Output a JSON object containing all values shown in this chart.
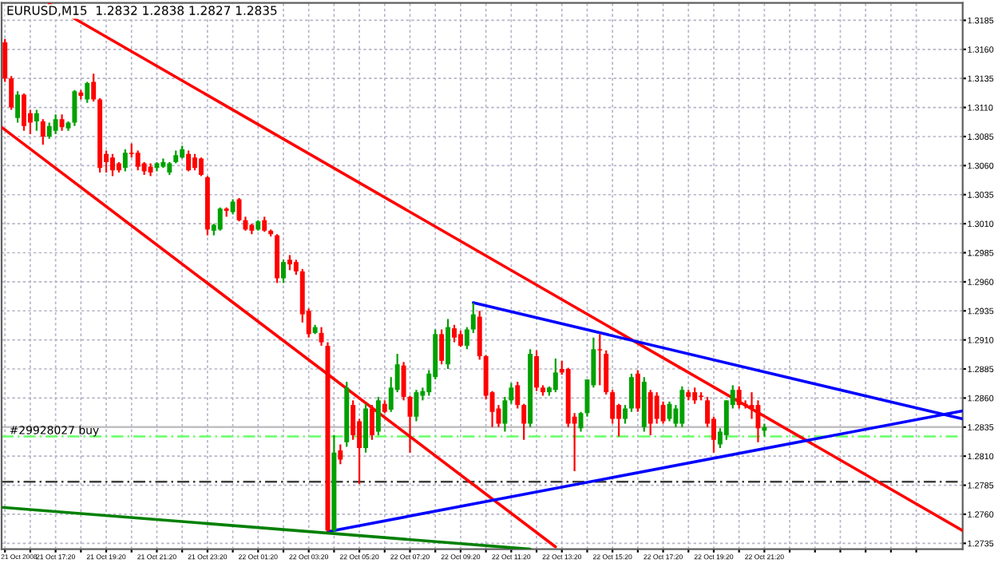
{
  "chart_data": {
    "type": "candlestick",
    "title": "EURUSD,M15  1.2832 1.2838 1.2827 1.2835",
    "x": [
      "2008-10-21T15:20",
      "2008-10-21T15:35",
      "2008-10-21T15:50",
      "2008-10-21T16:05",
      "2008-10-21T16:20",
      "2008-10-21T16:35",
      "2008-10-21T16:50",
      "2008-10-21T17:05",
      "2008-10-21T17:20",
      "2008-10-21T17:35",
      "2008-10-21T17:50",
      "2008-10-21T18:05",
      "2008-10-21T18:20",
      "2008-10-21T18:35",
      "2008-10-21T18:50",
      "2008-10-21T19:05",
      "2008-10-21T19:20",
      "2008-10-21T19:35",
      "2008-10-21T19:50",
      "2008-10-21T20:05",
      "2008-10-21T20:20",
      "2008-10-21T20:35",
      "2008-10-21T20:50",
      "2008-10-21T21:05",
      "2008-10-21T21:20",
      "2008-10-21T21:35",
      "2008-10-21T21:50",
      "2008-10-21T22:05",
      "2008-10-21T22:20",
      "2008-10-21T22:35",
      "2008-10-21T22:50",
      "2008-10-21T23:05",
      "2008-10-21T23:20",
      "2008-10-21T23:35",
      "2008-10-21T23:50",
      "2008-10-22T00:05",
      "2008-10-22T00:20",
      "2008-10-22T00:35",
      "2008-10-22T00:50",
      "2008-10-22T01:05",
      "2008-10-22T01:20",
      "2008-10-22T01:35",
      "2008-10-22T01:50",
      "2008-10-22T02:05",
      "2008-10-22T02:20",
      "2008-10-22T02:35",
      "2008-10-22T02:50",
      "2008-10-22T03:05",
      "2008-10-22T03:20",
      "2008-10-22T03:35",
      "2008-10-22T03:50",
      "2008-10-22T04:05",
      "2008-10-22T04:20",
      "2008-10-22T04:35",
      "2008-10-22T04:50",
      "2008-10-22T05:05",
      "2008-10-22T05:20",
      "2008-10-22T05:35",
      "2008-10-22T05:50",
      "2008-10-22T06:05",
      "2008-10-22T06:20",
      "2008-10-22T06:35",
      "2008-10-22T06:50",
      "2008-10-22T07:05",
      "2008-10-22T07:20",
      "2008-10-22T07:35",
      "2008-10-22T07:50",
      "2008-10-22T08:05",
      "2008-10-22T08:20",
      "2008-10-22T08:35",
      "2008-10-22T08:50",
      "2008-10-22T09:05",
      "2008-10-22T09:20",
      "2008-10-22T09:35",
      "2008-10-22T09:50",
      "2008-10-22T10:05",
      "2008-10-22T10:20",
      "2008-10-22T10:35",
      "2008-10-22T10:50",
      "2008-10-22T11:05",
      "2008-10-22T11:20",
      "2008-10-22T11:35",
      "2008-10-22T11:50",
      "2008-10-22T12:05",
      "2008-10-22T12:20",
      "2008-10-22T12:35",
      "2008-10-22T12:50",
      "2008-10-22T13:05",
      "2008-10-22T13:20",
      "2008-10-22T13:35",
      "2008-10-22T13:50",
      "2008-10-22T14:05",
      "2008-10-22T14:20",
      "2008-10-22T14:35",
      "2008-10-22T14:50",
      "2008-10-22T15:05",
      "2008-10-22T15:20",
      "2008-10-22T15:35",
      "2008-10-22T15:50",
      "2008-10-22T16:05",
      "2008-10-22T16:20",
      "2008-10-22T16:35",
      "2008-10-22T16:50",
      "2008-10-22T17:05",
      "2008-10-22T17:20",
      "2008-10-22T17:35",
      "2008-10-22T17:50",
      "2008-10-22T18:05",
      "2008-10-22T18:20",
      "2008-10-22T18:35",
      "2008-10-22T18:50",
      "2008-10-22T19:05",
      "2008-10-22T19:20",
      "2008-10-22T19:35",
      "2008-10-22T19:50",
      "2008-10-22T20:05",
      "2008-10-22T20:20",
      "2008-10-22T20:35",
      "2008-10-22T20:50",
      "2008-10-22T21:05",
      "2008-10-22T21:20"
    ],
    "ohlc": [
      [
        1.3166,
        1.3169,
        1.3132,
        1.3135
      ],
      [
        1.3135,
        1.3137,
        1.3108,
        1.311
      ],
      [
        1.3101,
        1.3124,
        1.3097,
        1.3121
      ],
      [
        1.3121,
        1.3122,
        1.309,
        1.3094
      ],
      [
        1.3105,
        1.3108,
        1.3087,
        1.3097
      ],
      [
        1.3098,
        1.3108,
        1.309,
        1.3105
      ],
      [
        1.3098,
        1.31,
        1.3078,
        1.3085
      ],
      [
        1.3085,
        1.3097,
        1.3083,
        1.3094
      ],
      [
        1.309,
        1.3104,
        1.3087,
        1.31
      ],
      [
        1.31,
        1.3104,
        1.309,
        1.3093
      ],
      [
        1.3092,
        1.3098,
        1.309,
        1.3097
      ],
      [
        1.3097,
        1.3125,
        1.3094,
        1.3124
      ],
      [
        1.3123,
        1.3125,
        1.3117,
        1.312
      ],
      [
        1.3117,
        1.3132,
        1.3114,
        1.3131
      ],
      [
        1.3132,
        1.3139,
        1.3115,
        1.3117
      ],
      [
        1.3117,
        1.3118,
        1.3054,
        1.3058
      ],
      [
        1.307,
        1.3073,
        1.3054,
        1.3063
      ],
      [
        1.3067,
        1.307,
        1.3051,
        1.3056
      ],
      [
        1.3062,
        1.3063,
        1.3054,
        1.3056
      ],
      [
        1.3058,
        1.3074,
        1.3055,
        1.3071
      ],
      [
        1.3071,
        1.3079,
        1.3067,
        1.307
      ],
      [
        1.3071,
        1.3073,
        1.3056,
        1.3059
      ],
      [
        1.3062,
        1.3063,
        1.3052,
        1.3055
      ],
      [
        1.3059,
        1.3062,
        1.3051,
        1.3054
      ],
      [
        1.3058,
        1.3063,
        1.3055,
        1.3062
      ],
      [
        1.3059,
        1.3066,
        1.3058,
        1.3063
      ],
      [
        1.3054,
        1.3063,
        1.3052,
        1.3062
      ],
      [
        1.3063,
        1.3073,
        1.3062,
        1.3069
      ],
      [
        1.3067,
        1.3077,
        1.3066,
        1.3074
      ],
      [
        1.307,
        1.3073,
        1.3055,
        1.3056
      ],
      [
        1.3067,
        1.307,
        1.3056,
        1.3058
      ],
      [
        1.3066,
        1.3067,
        1.3051,
        1.3052
      ],
      [
        1.305,
        1.3051,
        1.3,
        1.3005
      ],
      [
        1.3004,
        1.301,
        1.3,
        1.3009
      ],
      [
        1.3005,
        1.3024,
        1.3004,
        1.3023
      ],
      [
        1.3023,
        1.3024,
        1.3016,
        1.3021
      ],
      [
        1.302,
        1.3031,
        1.3018,
        1.3029
      ],
      [
        1.3031,
        1.3032,
        1.3012,
        1.3013
      ],
      [
        1.3013,
        1.3016,
        1.3004,
        1.3005
      ],
      [
        1.3009,
        1.301,
        1.3001,
        1.3004
      ],
      [
        1.3005,
        1.3013,
        1.3004,
        1.3012
      ],
      [
        1.3013,
        1.3016,
        1.3003,
        1.3004
      ],
      [
        1.3004,
        1.3005,
        1.2999,
        1.3001
      ],
      [
        1.3,
        1.3001,
        1.2959,
        1.2963
      ],
      [
        1.2963,
        1.2979,
        1.2959,
        1.2977
      ],
      [
        1.2979,
        1.2983,
        1.297,
        1.2975
      ],
      [
        1.2977,
        1.2979,
        1.2966,
        1.2969
      ],
      [
        1.2969,
        1.2971,
        1.2925,
        1.2932
      ],
      [
        1.2935,
        1.2937,
        1.2912,
        1.2915
      ],
      [
        1.2916,
        1.2923,
        1.2915,
        1.2921
      ],
      [
        1.2916,
        1.2921,
        1.2905,
        1.2908
      ],
      [
        1.2905,
        1.2908,
        1.2745,
        1.2746
      ],
      [
        1.2746,
        1.2828,
        1.2745,
        1.2813
      ],
      [
        1.2815,
        1.282,
        1.2803,
        1.2807
      ],
      [
        1.2822,
        1.2874,
        1.2818,
        1.2869
      ],
      [
        1.2854,
        1.2858,
        1.2824,
        1.2828
      ],
      [
        1.284,
        1.2842,
        1.2786,
        1.2817
      ],
      [
        1.2817,
        1.2855,
        1.2813,
        1.2851
      ],
      [
        1.2851,
        1.2854,
        1.2824,
        1.2828
      ],
      [
        1.2831,
        1.2861,
        1.2828,
        1.2858
      ],
      [
        1.2855,
        1.2858,
        1.2847,
        1.2848
      ],
      [
        1.285,
        1.2878,
        1.2848,
        1.2869
      ],
      [
        1.2867,
        1.2898,
        1.2865,
        1.2889
      ],
      [
        1.2888,
        1.2891,
        1.2858,
        1.2861
      ],
      [
        1.2861,
        1.2862,
        1.2813,
        1.2844
      ],
      [
        1.2844,
        1.2867,
        1.284,
        1.2865
      ],
      [
        1.2862,
        1.2869,
        1.2858,
        1.2866
      ],
      [
        1.2865,
        1.2884,
        1.2862,
        1.2881
      ],
      [
        1.2878,
        1.2919,
        1.2876,
        1.2915
      ],
      [
        1.2915,
        1.2919,
        1.2889,
        1.2892
      ],
      [
        1.2889,
        1.2928,
        1.2885,
        1.2921
      ],
      [
        1.292,
        1.2923,
        1.2908,
        1.2912
      ],
      [
        1.2915,
        1.2918,
        1.2904,
        1.2905
      ],
      [
        1.2905,
        1.2921,
        1.2902,
        1.2919
      ],
      [
        1.2919,
        1.2942,
        1.2916,
        1.2932
      ],
      [
        1.293,
        1.2935,
        1.2893,
        1.2896
      ],
      [
        1.2896,
        1.2897,
        1.2859,
        1.2862
      ],
      [
        1.2865,
        1.2866,
        1.2835,
        1.2848
      ],
      [
        1.2851,
        1.2854,
        1.2835,
        1.2838
      ],
      [
        1.2838,
        1.2861,
        1.2831,
        1.2858
      ],
      [
        1.2858,
        1.2873,
        1.2855,
        1.2869
      ],
      [
        1.2871,
        1.2874,
        1.2851,
        1.2854
      ],
      [
        1.2854,
        1.2855,
        1.2824,
        1.2838
      ],
      [
        1.2838,
        1.2902,
        1.2835,
        1.2898
      ],
      [
        1.2896,
        1.2901,
        1.2866,
        1.2869
      ],
      [
        1.2869,
        1.2871,
        1.2862,
        1.2865
      ],
      [
        1.2865,
        1.287,
        1.2862,
        1.2869
      ],
      [
        1.2867,
        1.2894,
        1.2865,
        1.2882
      ],
      [
        1.2885,
        1.2892,
        1.288,
        1.2882
      ],
      [
        1.2885,
        1.2886,
        1.2835,
        1.2838
      ],
      [
        1.2844,
        1.2847,
        1.2797,
        1.2838
      ],
      [
        1.2834,
        1.2848,
        1.2831,
        1.2847
      ],
      [
        1.2847,
        1.2876,
        1.2844,
        1.2876
      ],
      [
        1.2871,
        1.2912,
        1.2869,
        1.2902
      ],
      [
        1.2902,
        1.2915,
        1.2871,
        1.2901
      ],
      [
        1.2898,
        1.2901,
        1.2863,
        1.2865
      ],
      [
        1.2865,
        1.2867,
        1.2838,
        1.2842
      ],
      [
        1.2854,
        1.2855,
        1.2827,
        1.2842
      ],
      [
        1.2842,
        1.2854,
        1.2838,
        1.2851
      ],
      [
        1.2851,
        1.2881,
        1.2848,
        1.2878
      ],
      [
        1.2881,
        1.2884,
        1.2848,
        1.2851
      ],
      [
        1.2835,
        1.2878,
        1.2831,
        1.2874
      ],
      [
        1.2865,
        1.2867,
        1.2828,
        1.2838
      ],
      [
        1.2862,
        1.2865,
        1.2838,
        1.2842
      ],
      [
        1.2854,
        1.2857,
        1.2838,
        1.284
      ],
      [
        1.2842,
        1.2857,
        1.284,
        1.2855
      ],
      [
        1.2838,
        1.2854,
        1.2835,
        1.2851
      ],
      [
        1.2838,
        1.287,
        1.2835,
        1.2867
      ],
      [
        1.2865,
        1.2867,
        1.2858,
        1.2861
      ],
      [
        1.2865,
        1.2869,
        1.2855,
        1.2858
      ],
      [
        1.2862,
        1.2865,
        1.2858,
        1.2861
      ],
      [
        1.2858,
        1.2861,
        1.2835,
        1.2838
      ],
      [
        1.2842,
        1.2844,
        1.2813,
        1.2824
      ],
      [
        1.282,
        1.2834,
        1.2817,
        1.2831
      ],
      [
        1.2828,
        1.2858,
        1.2824,
        1.2858
      ],
      [
        1.2854,
        1.2871,
        1.2851,
        1.2867
      ],
      [
        1.2867,
        1.287,
        1.2851,
        1.2854
      ],
      [
        1.2855,
        1.2858,
        1.2851,
        1.2854
      ],
      [
        1.2854,
        1.2865,
        1.2842,
        1.2851
      ],
      [
        1.2854,
        1.2858,
        1.2822,
        1.2834
      ],
      [
        1.2832,
        1.2838,
        1.2827,
        1.2835
      ]
    ],
    "colors": [
      "#ff0000",
      "#ff0000",
      "#00a000",
      "#ff0000",
      "#ff0000",
      "#00a000",
      "#ff0000",
      "#00a000",
      "#00a000",
      "#ff0000",
      "#00a000",
      "#00a000",
      "#ff0000",
      "#00a000",
      "#ff0000",
      "#ff0000",
      "#ff0000",
      "#ff0000",
      "#ff0000",
      "#00a000",
      "#ff0000",
      "#ff0000",
      "#ff0000",
      "#ff0000",
      "#00a000",
      "#00a000",
      "#00a000",
      "#00a000",
      "#00a000",
      "#ff0000",
      "#ff0000",
      "#ff0000",
      "#ff0000",
      "#00a000",
      "#00a000",
      "#ff0000",
      "#00a000",
      "#ff0000",
      "#ff0000",
      "#ff0000",
      "#00a000",
      "#ff0000",
      "#ff0000",
      "#ff0000",
      "#00a000",
      "#ff0000",
      "#ff0000",
      "#ff0000",
      "#ff0000",
      "#00a000",
      "#ff0000",
      "#ff0000",
      "#00a000",
      "#ff0000",
      "#00a000",
      "#ff0000",
      "#ff0000",
      "#00a000",
      "#ff0000",
      "#00a000",
      "#ff0000",
      "#00a000",
      "#00a000",
      "#ff0000",
      "#ff0000",
      "#00a000",
      "#00a000",
      "#00a000",
      "#00a000",
      "#ff0000",
      "#00a000",
      "#ff0000",
      "#ff0000",
      "#00a000",
      "#00a000",
      "#ff0000",
      "#ff0000",
      "#ff0000",
      "#ff0000",
      "#00a000",
      "#00a000",
      "#ff0000",
      "#ff0000",
      "#00a000",
      "#ff0000",
      "#ff0000",
      "#00a000",
      "#00a000",
      "#ff0000",
      "#ff0000",
      "#ff0000",
      "#00a000",
      "#00a000",
      "#00a000",
      "#ff0000",
      "#ff0000",
      "#ff0000",
      "#ff0000",
      "#00a000",
      "#00a000",
      "#ff0000",
      "#00a000",
      "#ff0000",
      "#ff0000",
      "#ff0000",
      "#00a000",
      "#00a000",
      "#00a000",
      "#ff0000",
      "#ff0000",
      "#ff0000",
      "#ff0000",
      "#ff0000",
      "#00a000",
      "#00a000",
      "#00a000",
      "#ff0000",
      "#ff0000",
      "#ff0000",
      "#ff0000",
      "#00a000"
    ],
    "series": [
      {
        "type": "line",
        "color": "#ff0000",
        "x": [
          "2008-10-21T17:05",
          "2008-10-23T05:10"
        ],
        "values": [
          1.3199,
          1.2746
        ]
      },
      {
        "type": "line",
        "color": "#ff0000",
        "x": [
          "2008-10-21T15:12",
          "2008-10-22T13:05"
        ],
        "values": [
          1.3093,
          1.2732
        ]
      },
      {
        "type": "line",
        "color": "#0000ff",
        "x": [
          "2008-10-22T09:50",
          "2008-10-23T05:10"
        ],
        "values": [
          1.2942,
          1.2842
        ]
      },
      {
        "type": "line",
        "color": "#0000ff",
        "x": [
          "2008-10-22T04:05",
          "2008-10-23T05:10"
        ],
        "values": [
          1.2745,
          1.2849
        ]
      },
      {
        "type": "line",
        "color": "#008000",
        "x": [
          "2008-10-21T15:12",
          "2008-10-22T12:05"
        ],
        "values": [
          1.2766,
          1.273
        ]
      }
    ],
    "ref_lines": [
      {
        "axis": "y",
        "value": 1.2835,
        "color": "#c0c0c0",
        "line_style": "solid"
      },
      {
        "axis": "y",
        "value": 1.2827,
        "label": "#29928027 buy",
        "color": "#66ff66",
        "line_style": "dashed"
      },
      {
        "axis": "y",
        "value": 1.2788,
        "color": "#404040",
        "line_style": "dashed"
      }
    ],
    "xlim": [
      "2008-10-21T15:12",
      "2008-10-23T05:10"
    ],
    "xticks": [
      {
        "value": "2008-10-21T15:20",
        "label": "21 Oct 2008"
      },
      {
        "value": "2008-10-21T16:20",
        "label": null
      },
      {
        "value": "2008-10-21T17:20",
        "label": "21 Oct 17:20"
      },
      {
        "value": "2008-10-21T18:20",
        "label": null
      },
      {
        "value": "2008-10-21T19:20",
        "label": "21 Oct 19:20"
      },
      {
        "value": "2008-10-21T20:20",
        "label": null
      },
      {
        "value": "2008-10-21T21:20",
        "label": "21 Oct 21:20"
      },
      {
        "value": "2008-10-21T22:20",
        "label": null
      },
      {
        "value": "2008-10-21T23:20",
        "label": "21 Oct 23:20"
      },
      {
        "value": "2008-10-22T00:20",
        "label": null
      },
      {
        "value": "2008-10-22T01:20",
        "label": "22 Oct 01:20"
      },
      {
        "value": "2008-10-22T02:20",
        "label": null
      },
      {
        "value": "2008-10-22T03:20",
        "label": "22 Oct 03:20"
      },
      {
        "value": "2008-10-22T04:20",
        "label": null
      },
      {
        "value": "2008-10-22T05:20",
        "label": "22 Oct 05:20"
      },
      {
        "value": "2008-10-22T06:20",
        "label": null
      },
      {
        "value": "2008-10-22T07:20",
        "label": "22 Oct 07:20"
      },
      {
        "value": "2008-10-22T08:20",
        "label": null
      },
      {
        "value": "2008-10-22T09:20",
        "label": "22 Oct 09:20"
      },
      {
        "value": "2008-10-22T10:20",
        "label": null
      },
      {
        "value": "2008-10-22T11:20",
        "label": "22 Oct 11:20"
      },
      {
        "value": "2008-10-22T12:20",
        "label": null
      },
      {
        "value": "2008-10-22T13:20",
        "label": "22 Oct 13:20"
      },
      {
        "value": "2008-10-22T14:20",
        "label": null
      },
      {
        "value": "2008-10-22T15:20",
        "label": "22 Oct 15:20"
      },
      {
        "value": "2008-10-22T16:20",
        "label": null
      },
      {
        "value": "2008-10-22T17:20",
        "label": "22 Oct 17:20"
      },
      {
        "value": "2008-10-22T18:20",
        "label": null
      },
      {
        "value": "2008-10-22T19:20",
        "label": "22 Oct 19:20"
      },
      {
        "value": "2008-10-22T20:20",
        "label": null
      },
      {
        "value": "2008-10-22T21:20",
        "label": "22 Oct 21:20"
      },
      {
        "value": "2008-10-22T22:20",
        "label": null
      },
      {
        "value": "2008-10-22T23:20",
        "label": null
      },
      {
        "value": "2008-10-23T00:20",
        "label": null
      },
      {
        "value": "2008-10-23T01:20",
        "label": null
      },
      {
        "value": "2008-10-23T02:20",
        "label": null
      },
      {
        "value": "2008-10-23T03:20",
        "label": null
      }
    ],
    "ylim": [
      1.273,
      1.32
    ],
    "yticks": [
      1.3185,
      {
        "value": 1.316,
        "label": "1.3160"
      },
      1.3135,
      {
        "value": 1.311,
        "label": "1.3110"
      },
      1.3085,
      {
        "value": 1.306,
        "label": "1.3060"
      },
      1.3035,
      {
        "value": 1.301,
        "label": "1.3010"
      },
      1.2985,
      {
        "value": 1.296,
        "label": "1.2960"
      },
      1.2935,
      {
        "value": 1.291,
        "label": "1.2910"
      },
      1.2885,
      {
        "value": 1.286,
        "label": "1.2860"
      },
      1.2835,
      {
        "value": 1.281,
        "label": "1.2810"
      },
      1.2785,
      {
        "value": 1.276,
        "label": "1.2760"
      },
      1.2735
    ],
    "grid": true
  }
}
